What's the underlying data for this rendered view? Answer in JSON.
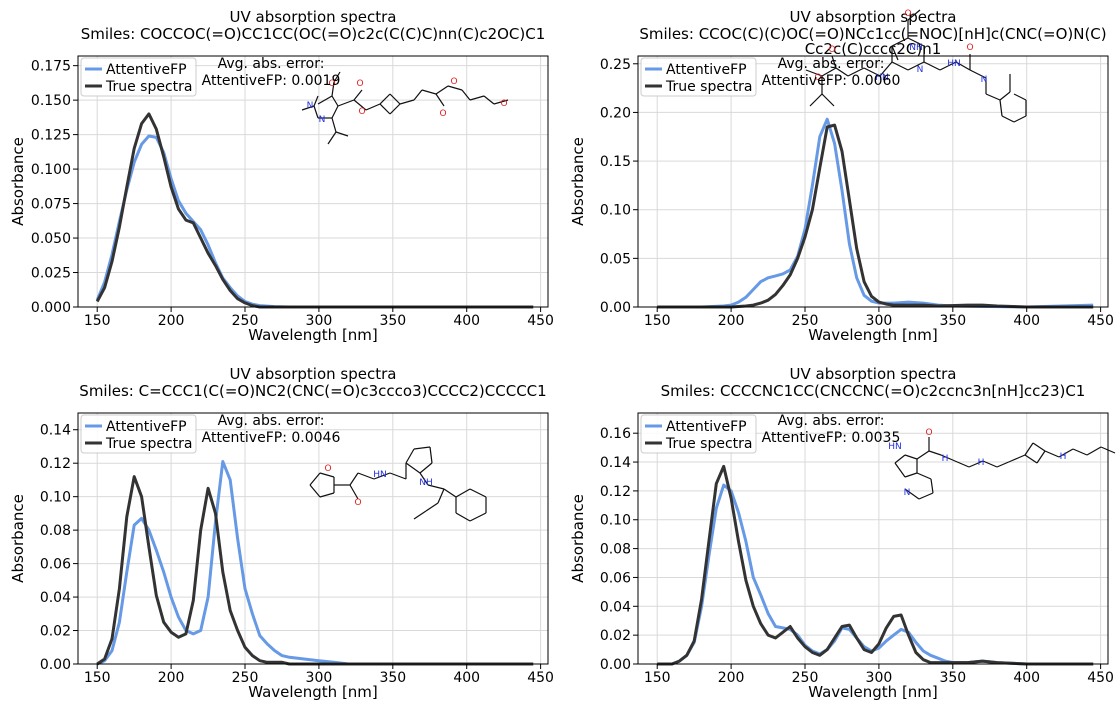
{
  "figure": {
    "series_colors": {
      "predicted": "#6699e6",
      "true": "#333333"
    },
    "legend_labels": [
      "AttentiveFP",
      "True spectra"
    ]
  },
  "chart_data": [
    {
      "type": "line",
      "title": "UV absorption spectra",
      "smiles_lines": [
        "Smiles: COCCOC(=O)CC1CC(OC(=O)c2c(C(C)C)nn(C)c2OC)C1"
      ],
      "error_label": "Avg. abs. error:",
      "error_value": "AttentiveFP: 0.0019",
      "xlabel": "Wavelength [nm]",
      "ylabel": "Absorbance",
      "xlim": [
        137,
        455
      ],
      "ylim": [
        0,
        0.182
      ],
      "xticks": [
        150,
        200,
        250,
        300,
        350,
        400,
        450
      ],
      "yticks": [
        0,
        0.025,
        0.05,
        0.075,
        0.1,
        0.125,
        0.15,
        0.175
      ],
      "ytick_labels": [
        "0.000",
        "0.025",
        "0.050",
        "0.075",
        "0.100",
        "0.125",
        "0.150",
        "0.175"
      ],
      "grid": true,
      "legend_position": "upper-left",
      "series": [
        {
          "name": "AttentiveFP",
          "color": "#6699e6",
          "x": [
            150,
            155,
            160,
            165,
            170,
            175,
            180,
            185,
            190,
            195,
            200,
            205,
            210,
            215,
            220,
            225,
            230,
            235,
            240,
            245,
            250,
            255,
            260,
            270,
            280,
            300,
            350,
            400,
            445
          ],
          "y": [
            0.005,
            0.018,
            0.038,
            0.062,
            0.085,
            0.105,
            0.118,
            0.124,
            0.123,
            0.112,
            0.093,
            0.077,
            0.068,
            0.062,
            0.056,
            0.045,
            0.032,
            0.021,
            0.014,
            0.008,
            0.004,
            0.002,
            0.001,
            0.0003,
            0,
            0,
            0,
            0,
            0
          ]
        },
        {
          "name": "True spectra",
          "color": "#333333",
          "x": [
            150,
            155,
            160,
            165,
            170,
            175,
            180,
            185,
            190,
            195,
            200,
            205,
            210,
            215,
            220,
            225,
            230,
            235,
            240,
            245,
            250,
            255,
            260,
            270,
            280,
            300,
            350,
            400,
            445
          ],
          "y": [
            0.004,
            0.014,
            0.033,
            0.058,
            0.087,
            0.115,
            0.133,
            0.14,
            0.129,
            0.109,
            0.087,
            0.071,
            0.063,
            0.061,
            0.05,
            0.039,
            0.03,
            0.02,
            0.012,
            0.006,
            0.003,
            0.001,
            0,
            0,
            0,
            0,
            0,
            0,
            0
          ]
        }
      ]
    },
    {
      "type": "line",
      "title": "UV absorption spectra",
      "smiles_lines": [
        "Smiles: CCOC(C)(C)OC(=O)NCc1cc(=NOC)[nH]c(CNC(=O)N(C)",
        "Cc2c(C)cccc2C)n1"
      ],
      "error_label": "Avg. abs. error:",
      "error_value": "AttentiveFP: 0.0060",
      "xlabel": "Wavelength [nm]",
      "ylabel": "Absorbance",
      "xlim": [
        137,
        455
      ],
      "ylim": [
        0,
        0.258
      ],
      "xticks": [
        150,
        200,
        250,
        300,
        350,
        400,
        450
      ],
      "yticks": [
        0,
        0.05,
        0.1,
        0.15,
        0.2,
        0.25
      ],
      "ytick_labels": [
        "0.00",
        "0.05",
        "0.10",
        "0.15",
        "0.20",
        "0.25"
      ],
      "grid": true,
      "legend_position": "upper-left",
      "series": [
        {
          "name": "AttentiveFP",
          "color": "#6699e6",
          "x": [
            150,
            180,
            195,
            200,
            205,
            210,
            215,
            220,
            225,
            230,
            235,
            240,
            245,
            250,
            255,
            260,
            265,
            270,
            275,
            280,
            285,
            290,
            295,
            300,
            310,
            320,
            330,
            340,
            350,
            400,
            445
          ],
          "y": [
            0,
            0,
            0.001,
            0.002,
            0.005,
            0.01,
            0.018,
            0.026,
            0.03,
            0.032,
            0.034,
            0.038,
            0.052,
            0.08,
            0.125,
            0.175,
            0.193,
            0.168,
            0.12,
            0.065,
            0.03,
            0.012,
            0.006,
            0.004,
            0.004,
            0.005,
            0.004,
            0.002,
            0.001,
            0,
            0.002
          ]
        },
        {
          "name": "True spectra",
          "color": "#333333",
          "x": [
            150,
            200,
            210,
            215,
            220,
            225,
            230,
            235,
            240,
            245,
            250,
            255,
            260,
            265,
            270,
            275,
            280,
            285,
            290,
            295,
            300,
            305,
            310,
            320,
            330,
            340,
            360,
            370,
            380,
            400,
            445
          ],
          "y": [
            0,
            0,
            0.001,
            0.002,
            0.004,
            0.007,
            0.013,
            0.022,
            0.033,
            0.05,
            0.072,
            0.1,
            0.143,
            0.185,
            0.187,
            0.16,
            0.11,
            0.06,
            0.026,
            0.011,
            0.005,
            0.003,
            0.002,
            0.002,
            0.002,
            0.001,
            0.002,
            0.002,
            0.001,
            0,
            0
          ]
        }
      ]
    },
    {
      "type": "line",
      "title": "UV absorption spectra",
      "smiles_lines": [
        "Smiles: C=CCC1(C(=O)NC2(CNC(=O)c3ccco3)CCCC2)CCCCC1"
      ],
      "error_label": "Avg. abs. error:",
      "error_value": "AttentiveFP: 0.0046",
      "xlabel": "Wavelength [nm]",
      "ylabel": "Absorbance",
      "xlim": [
        137,
        455
      ],
      "ylim": [
        0,
        0.15
      ],
      "xticks": [
        150,
        200,
        250,
        300,
        350,
        400,
        450
      ],
      "yticks": [
        0,
        0.02,
        0.04,
        0.06,
        0.08,
        0.1,
        0.12,
        0.14
      ],
      "ytick_labels": [
        "0.00",
        "0.02",
        "0.04",
        "0.06",
        "0.08",
        "0.10",
        "0.12",
        "0.14"
      ],
      "grid": true,
      "legend_position": "upper-left",
      "series": [
        {
          "name": "AttentiveFP",
          "color": "#6699e6",
          "x": [
            150,
            155,
            160,
            165,
            170,
            175,
            180,
            185,
            190,
            195,
            200,
            205,
            210,
            215,
            220,
            225,
            230,
            235,
            240,
            245,
            250,
            255,
            260,
            265,
            270,
            275,
            280,
            290,
            300,
            310,
            320,
            340,
            445
          ],
          "y": [
            0,
            0.002,
            0.008,
            0.025,
            0.055,
            0.083,
            0.087,
            0.08,
            0.068,
            0.055,
            0.04,
            0.028,
            0.02,
            0.018,
            0.02,
            0.04,
            0.085,
            0.121,
            0.11,
            0.075,
            0.045,
            0.03,
            0.017,
            0.012,
            0.008,
            0.005,
            0.004,
            0.003,
            0.002,
            0.001,
            0,
            0,
            0
          ]
        },
        {
          "name": "True spectra",
          "color": "#333333",
          "x": [
            150,
            155,
            160,
            165,
            170,
            175,
            180,
            185,
            190,
            195,
            200,
            205,
            210,
            215,
            220,
            225,
            230,
            235,
            240,
            245,
            250,
            255,
            260,
            265,
            270,
            275,
            280,
            290,
            300,
            310,
            320,
            340,
            445
          ],
          "y": [
            0,
            0.003,
            0.015,
            0.045,
            0.088,
            0.112,
            0.1,
            0.07,
            0.041,
            0.025,
            0.019,
            0.016,
            0.018,
            0.038,
            0.08,
            0.105,
            0.09,
            0.055,
            0.032,
            0.02,
            0.01,
            0.005,
            0.002,
            0.001,
            0.001,
            0.001,
            0,
            0,
            0,
            0,
            0,
            0,
            0
          ]
        }
      ]
    },
    {
      "type": "line",
      "title": "UV absorption spectra",
      "smiles_lines": [
        "Smiles: CCCCNC1CC(CNCCNC(=O)c2ccnc3n[nH]cc23)C1"
      ],
      "error_label": "Avg. abs. error:",
      "error_value": "AttentiveFP: 0.0035",
      "xlabel": "Wavelength [nm]",
      "ylabel": "Absorbance",
      "xlim": [
        137,
        455
      ],
      "ylim": [
        0,
        0.174
      ],
      "xticks": [
        150,
        200,
        250,
        300,
        350,
        400,
        450
      ],
      "yticks": [
        0,
        0.02,
        0.04,
        0.06,
        0.08,
        0.1,
        0.12,
        0.14,
        0.16
      ],
      "ytick_labels": [
        "0.00",
        "0.02",
        "0.04",
        "0.06",
        "0.08",
        "0.10",
        "0.12",
        "0.14",
        "0.16"
      ],
      "grid": true,
      "legend_position": "upper-left",
      "series": [
        {
          "name": "AttentiveFP",
          "color": "#6699e6",
          "x": [
            150,
            160,
            165,
            170,
            175,
            180,
            185,
            190,
            195,
            200,
            205,
            210,
            215,
            220,
            225,
            230,
            235,
            240,
            245,
            250,
            255,
            260,
            265,
            270,
            275,
            280,
            285,
            290,
            295,
            300,
            305,
            310,
            315,
            320,
            325,
            330,
            335,
            340,
            345,
            350,
            360,
            370,
            380,
            400,
            445
          ],
          "y": [
            0,
            0,
            0.002,
            0.006,
            0.015,
            0.04,
            0.075,
            0.108,
            0.124,
            0.12,
            0.105,
            0.085,
            0.06,
            0.048,
            0.035,
            0.026,
            0.025,
            0.024,
            0.02,
            0.013,
            0.009,
            0.007,
            0.01,
            0.016,
            0.025,
            0.024,
            0.018,
            0.012,
            0.009,
            0.011,
            0.016,
            0.02,
            0.024,
            0.022,
            0.015,
            0.009,
            0.006,
            0.004,
            0.002,
            0.001,
            0.001,
            0.002,
            0.001,
            0,
            0
          ]
        },
        {
          "name": "True spectra",
          "color": "#333333",
          "x": [
            150,
            160,
            165,
            170,
            175,
            180,
            185,
            190,
            195,
            200,
            205,
            210,
            215,
            220,
            225,
            230,
            235,
            240,
            245,
            250,
            255,
            260,
            265,
            270,
            275,
            280,
            285,
            290,
            295,
            300,
            305,
            310,
            315,
            320,
            325,
            330,
            335,
            340,
            345,
            350,
            360,
            370,
            380,
            400,
            445
          ],
          "y": [
            0,
            0,
            0.002,
            0.006,
            0.016,
            0.045,
            0.085,
            0.125,
            0.137,
            0.115,
            0.085,
            0.058,
            0.04,
            0.028,
            0.02,
            0.018,
            0.022,
            0.026,
            0.018,
            0.012,
            0.008,
            0.006,
            0.01,
            0.018,
            0.026,
            0.027,
            0.018,
            0.01,
            0.008,
            0.014,
            0.025,
            0.033,
            0.034,
            0.02,
            0.008,
            0.003,
            0.001,
            0.001,
            0.001,
            0.001,
            0.001,
            0.002,
            0.001,
            0,
            0
          ]
        }
      ]
    }
  ]
}
